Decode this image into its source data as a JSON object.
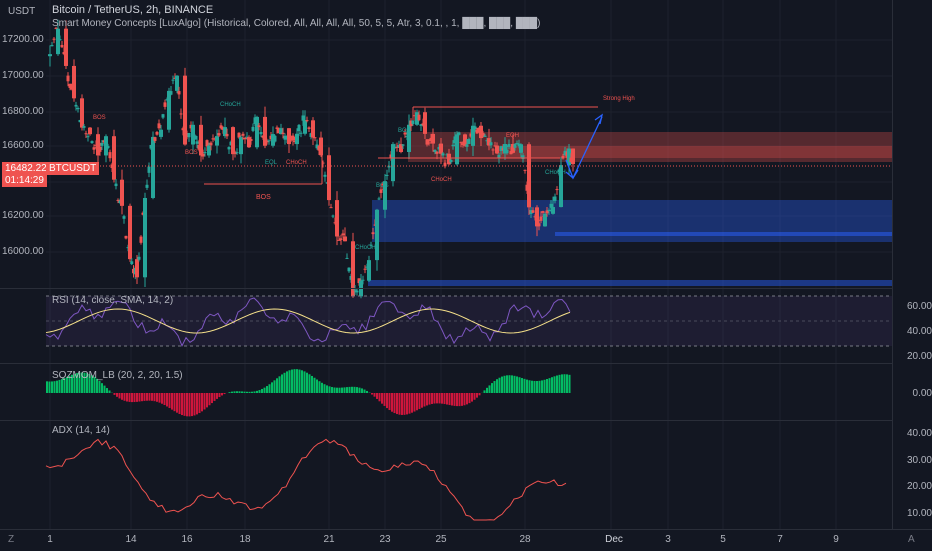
{
  "header": {
    "symbol_line": "Bitcoin / TetherUS, 2h, BINANCE",
    "indicator_line": "Smart Money Concepts [LuxAlgo] (Historical, Colored, All, All, All, All, 50, 5, 5, Atr, 3, 0.1, , 1, ███, ███, ███)"
  },
  "currency": "USDT",
  "price_axis": {
    "labels": [
      "17200.00",
      "17000.00",
      "16800.00",
      "16600.00",
      "16200.00",
      "16000.00"
    ],
    "values": [
      17200,
      17000,
      16800,
      16600,
      16200,
      16000
    ]
  },
  "current_price_tag": {
    "symbol": "BTCUSDT",
    "price": "16482.22",
    "countdown": "01:14:29"
  },
  "smc_labels": {
    "swing_high": "Strong High",
    "bos": "BOS",
    "choch": "CHoCH",
    "eqh": "EQH",
    "eql": "EQL"
  },
  "rsi": {
    "label": "RSI (14, close, SMA, 14, 2)",
    "axis": [
      "60.00",
      "40.00",
      "20.00"
    ]
  },
  "sqz": {
    "label": "SQZMOM_LB (20, 2, 20, 1.5)",
    "axis": [
      "0.00"
    ]
  },
  "adx": {
    "label": "ADX (14, 14)",
    "axis": [
      "40.00",
      "30.00",
      "20.00",
      "10.00"
    ]
  },
  "time_axis": {
    "labels": [
      "1",
      "14",
      "16",
      "18",
      "21",
      "23",
      "25",
      "28",
      "Dec",
      "3",
      "5",
      "7",
      "9"
    ]
  },
  "bottom": {
    "left_btn": "Z",
    "right_btn": "A"
  },
  "colors": {
    "up": "#26a69a",
    "down": "#ef5350",
    "rsi_line": "#7e57c2",
    "rsi_ma": "#f5e08a",
    "adx": "#ef5350",
    "sqz_green": "#00e676",
    "sqz_red": "#ff1744",
    "arrow": "#2962ff"
  }
}
